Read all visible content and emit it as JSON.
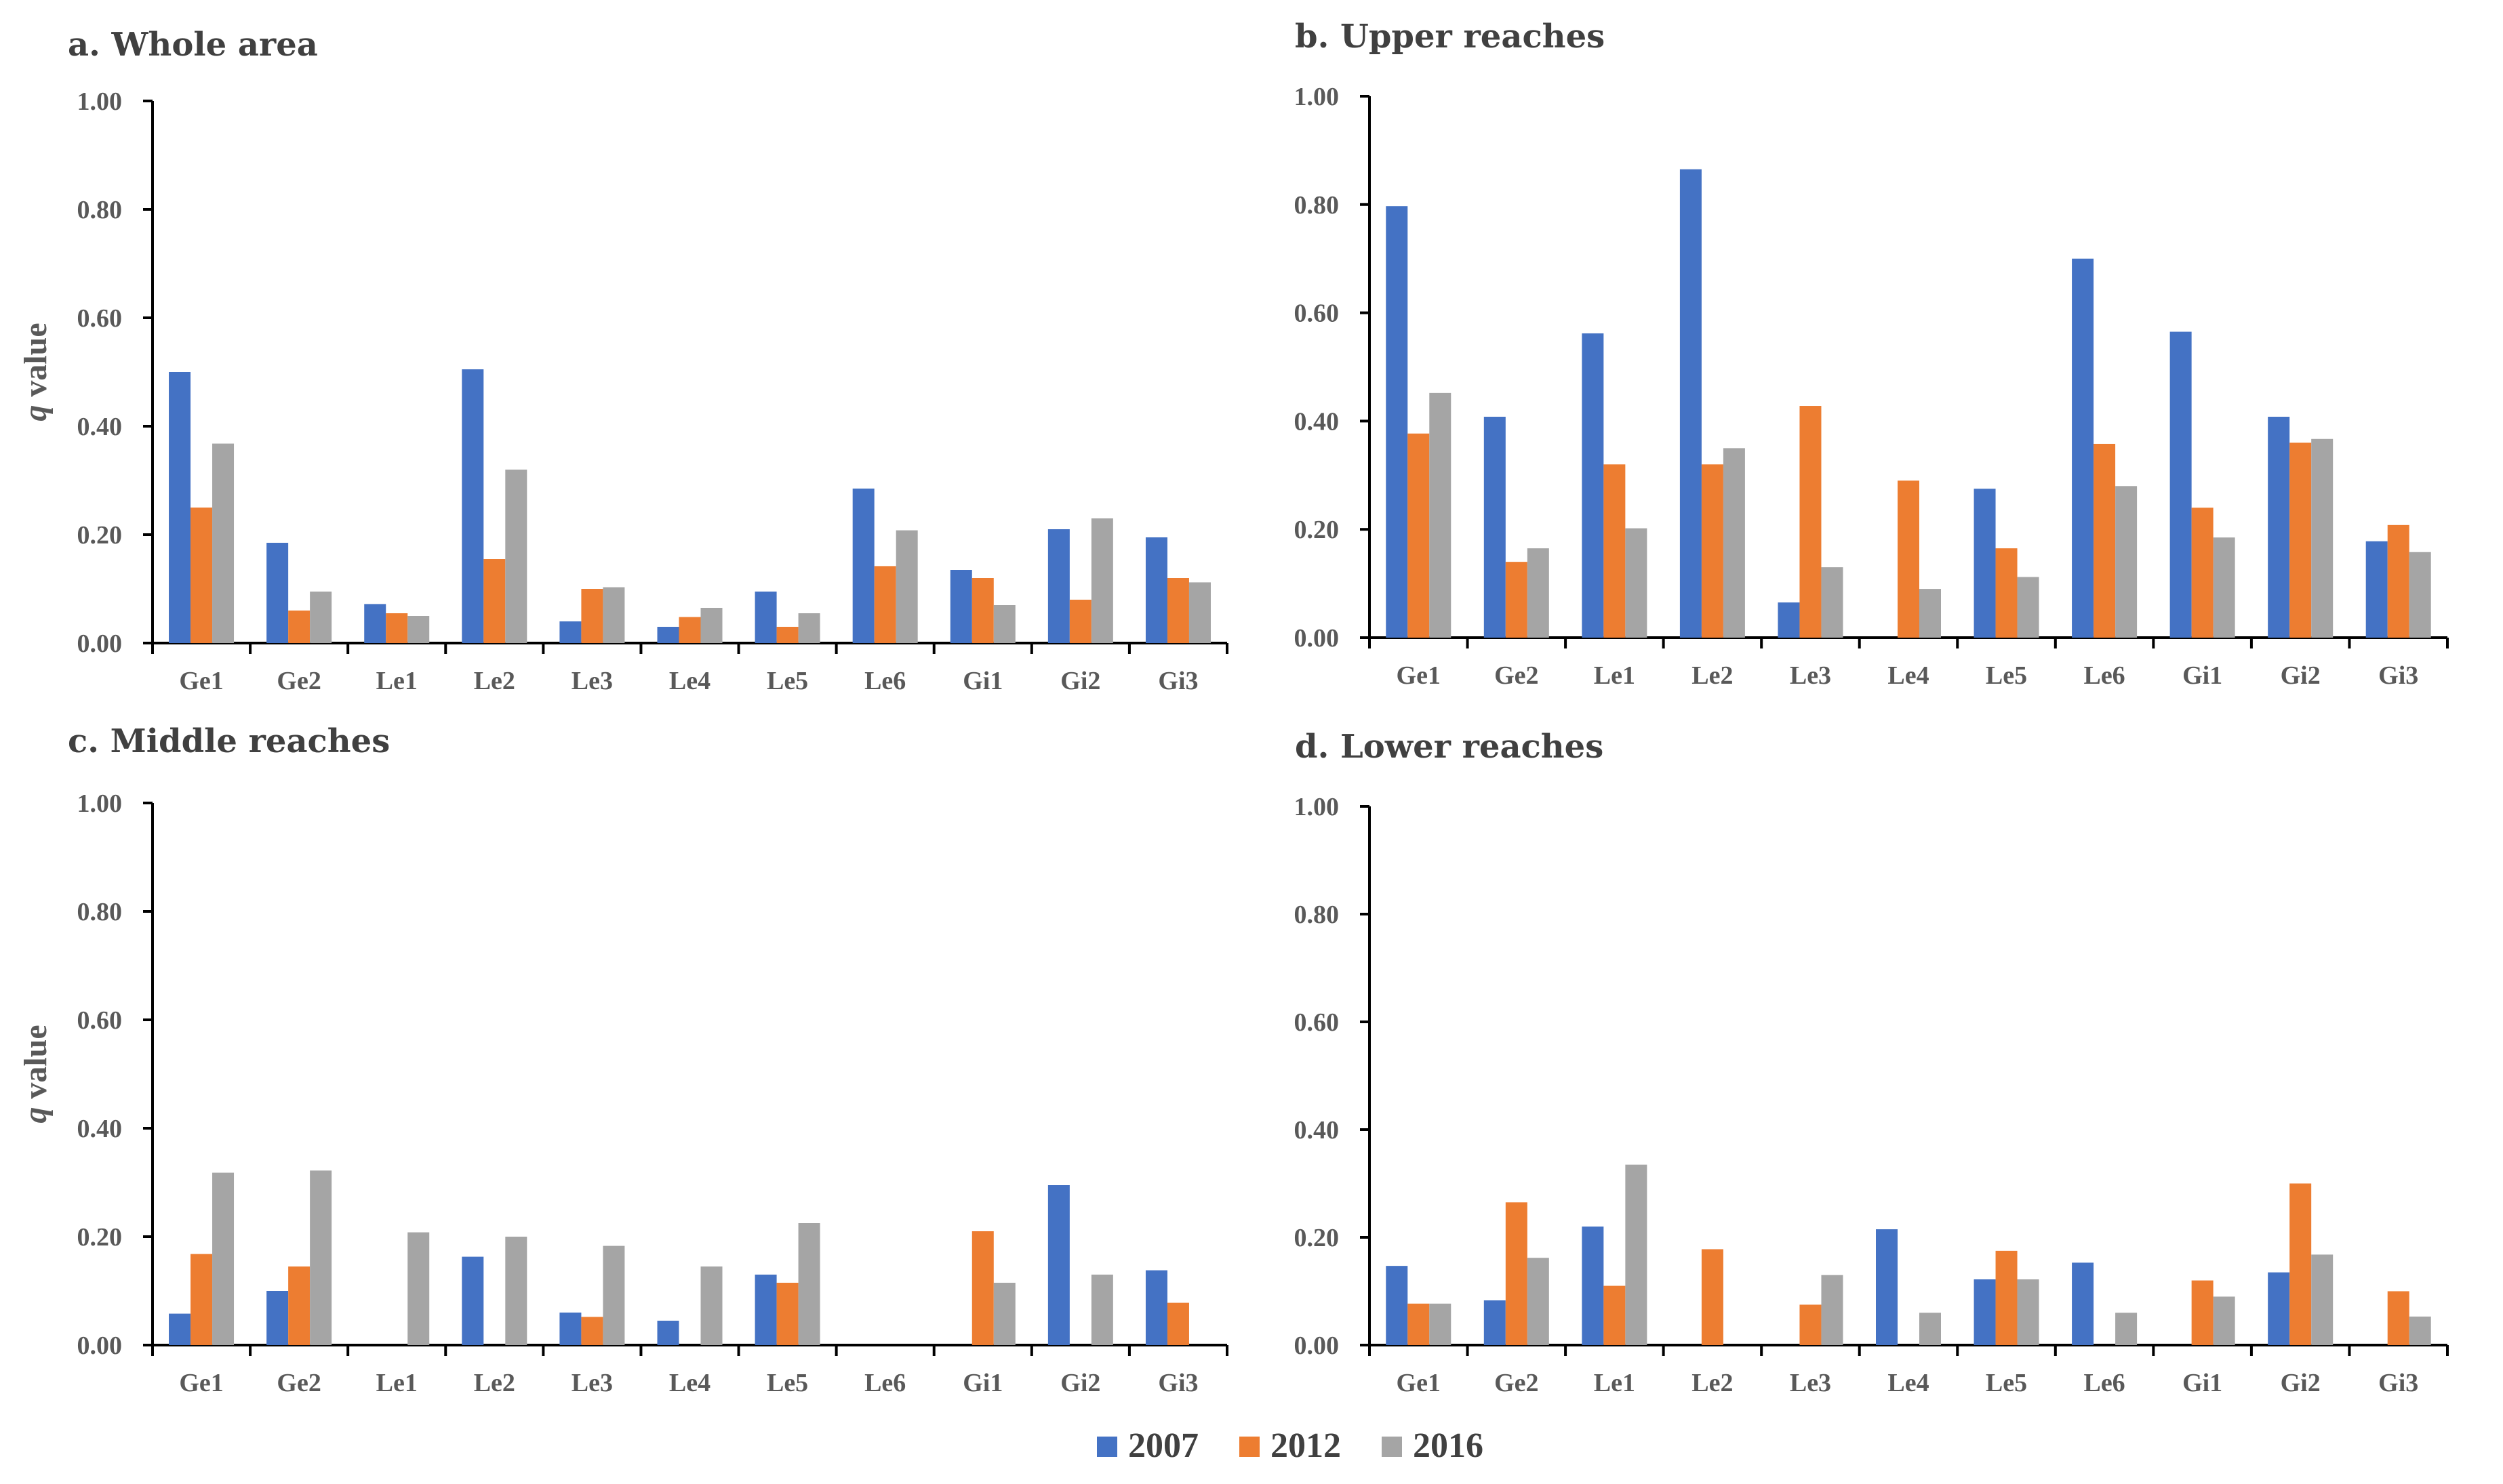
{
  "figure": {
    "legend": {
      "entries": [
        "2007",
        "2012",
        "2016"
      ]
    }
  },
  "colors": {
    "2007": "#4472C4",
    "2012": "#ED7D31",
    "2016": "#A5A5A5",
    "axis": "#000000",
    "text": "#595959",
    "title": "#404040"
  },
  "chart_data": [
    {
      "type": "bar",
      "title": "a. Whole area",
      "ylabel_italic": "q",
      "ylabel_rest": " value",
      "ylim": [
        0,
        1.0
      ],
      "yticks": [
        "0.00",
        "0.20",
        "0.40",
        "0.60",
        "0.80",
        "1.00"
      ],
      "categories": [
        "Ge1",
        "Ge2",
        "Le1",
        "Le2",
        "Le3",
        "Le4",
        "Le5",
        "Le6",
        "Gi1",
        "Gi2",
        "Gi3"
      ],
      "series": [
        {
          "name": "2007",
          "values": [
            0.5,
            0.185,
            0.072,
            0.505,
            0.04,
            0.03,
            0.095,
            0.285,
            0.135,
            0.21,
            0.195
          ]
        },
        {
          "name": "2012",
          "values": [
            0.25,
            0.06,
            0.055,
            0.155,
            0.1,
            0.048,
            0.03,
            0.142,
            0.12,
            0.08,
            0.12
          ]
        },
        {
          "name": "2016",
          "values": [
            0.368,
            0.095,
            0.05,
            0.32,
            0.103,
            0.065,
            0.055,
            0.208,
            0.07,
            0.23,
            0.112
          ]
        }
      ]
    },
    {
      "type": "bar",
      "title": "b. Upper reaches",
      "ylabel_italic": "",
      "ylabel_rest": "",
      "ylim": [
        0,
        1.0
      ],
      "yticks": [
        "0.00",
        "0.20",
        "0.40",
        "0.60",
        "0.80",
        "1.00"
      ],
      "categories": [
        "Ge1",
        "Ge2",
        "Le1",
        "Le2",
        "Le3",
        "Le4",
        "Le5",
        "Le6",
        "Gi1",
        "Gi2",
        "Gi3"
      ],
      "series": [
        {
          "name": "2007",
          "values": [
            0.797,
            0.408,
            0.562,
            0.865,
            0.065,
            0,
            0.275,
            0.7,
            0.565,
            0.408,
            0.178
          ]
        },
        {
          "name": "2012",
          "values": [
            0.377,
            0.14,
            0.32,
            0.32,
            0.428,
            0.29,
            0.165,
            0.358,
            0.24,
            0.36,
            0.208
          ]
        },
        {
          "name": "2016",
          "values": [
            0.452,
            0.165,
            0.202,
            0.35,
            0.13,
            0.09,
            0.112,
            0.28,
            0.185,
            0.367,
            0.158
          ]
        }
      ]
    },
    {
      "type": "bar",
      "title": "c. Middle reaches",
      "ylabel_italic": "q",
      "ylabel_rest": " value",
      "ylim": [
        0,
        1.0
      ],
      "yticks": [
        "0.00",
        "0.20",
        "0.40",
        "0.60",
        "0.80",
        "1.00"
      ],
      "categories": [
        "Ge1",
        "Ge2",
        "Le1",
        "Le2",
        "Le3",
        "Le4",
        "Le5",
        "Le6",
        "Gi1",
        "Gi2",
        "Gi3"
      ],
      "series": [
        {
          "name": "2007",
          "values": [
            0.058,
            0.1,
            0,
            0.163,
            0.06,
            0.045,
            0.13,
            0,
            0,
            0.295,
            0.138
          ]
        },
        {
          "name": "2012",
          "values": [
            0.168,
            0.145,
            0,
            0,
            0.052,
            0,
            0.115,
            0,
            0.21,
            0,
            0.078
          ]
        },
        {
          "name": "2016",
          "values": [
            0.318,
            0.322,
            0.208,
            0.2,
            0.183,
            0.145,
            0.225,
            0,
            0.115,
            0.13,
            0
          ]
        }
      ]
    },
    {
      "type": "bar",
      "title": "d. Lower reaches",
      "ylabel_italic": "",
      "ylabel_rest": "",
      "ylim": [
        0,
        1.0
      ],
      "yticks": [
        "0.00",
        "0.20",
        "0.40",
        "0.60",
        "0.80",
        "1.00"
      ],
      "categories": [
        "Ge1",
        "Ge2",
        "Le1",
        "Le2",
        "Le3",
        "Le4",
        "Le5",
        "Le6",
        "Gi1",
        "Gi2",
        "Gi3"
      ],
      "series": [
        {
          "name": "2007",
          "values": [
            0.147,
            0.083,
            0.22,
            0,
            0,
            0.215,
            0.122,
            0.153,
            0,
            0.135,
            0
          ]
        },
        {
          "name": "2012",
          "values": [
            0.077,
            0.265,
            0.11,
            0.178,
            0.075,
            0,
            0.175,
            0,
            0.12,
            0.3,
            0.1
          ]
        },
        {
          "name": "2016",
          "values": [
            0.077,
            0.162,
            0.335,
            0,
            0.13,
            0.06,
            0.122,
            0.06,
            0.09,
            0.168,
            0.053
          ]
        }
      ]
    }
  ]
}
